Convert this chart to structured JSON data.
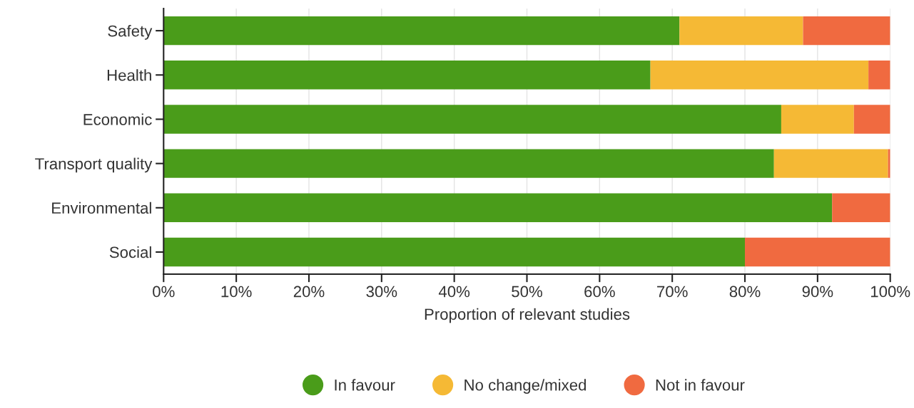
{
  "chart_data": {
    "type": "bar",
    "orientation": "horizontal",
    "stacked": true,
    "xlabel": "Proportion of relevant studies",
    "categories": [
      "Safety",
      "Health",
      "Economic",
      "Transport quality",
      "Environmental",
      "Social"
    ],
    "series": [
      {
        "name": "In favour",
        "color": "#4a9c1a",
        "values": [
          71,
          67,
          85,
          84,
          92,
          80
        ]
      },
      {
        "name": "No change/mixed",
        "color": "#f5b935",
        "values": [
          17,
          30,
          10,
          15.7,
          0,
          0
        ]
      },
      {
        "name": "Not in favour",
        "color": "#f06a40",
        "values": [
          12,
          3,
          5,
          0.3,
          8,
          20
        ]
      }
    ],
    "xlim": [
      0,
      100
    ],
    "xticks": [
      {
        "value": 0,
        "label": "0%"
      },
      {
        "value": 10,
        "label": "10%"
      },
      {
        "value": 20,
        "label": "20%"
      },
      {
        "value": 30,
        "label": "30%"
      },
      {
        "value": 40,
        "label": "40%"
      },
      {
        "value": 50,
        "label": "50%"
      },
      {
        "value": 60,
        "label": "60%"
      },
      {
        "value": 70,
        "label": "70%"
      },
      {
        "value": 80,
        "label": "80%"
      },
      {
        "value": 90,
        "label": "90%"
      },
      {
        "value": 100,
        "label": "100%"
      }
    ],
    "grid": "x",
    "legend": "bottom",
    "marker": "circle"
  }
}
